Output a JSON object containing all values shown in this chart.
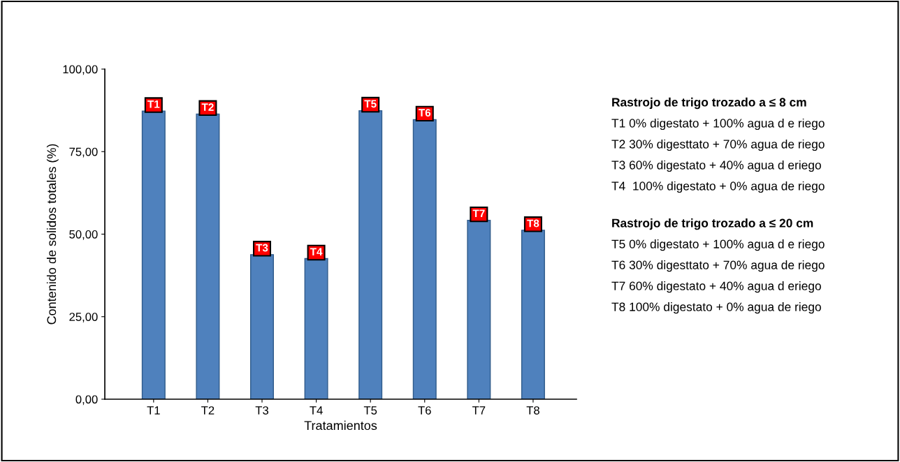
{
  "chart_data": {
    "type": "bar",
    "categories": [
      "T1",
      "T2",
      "T3",
      "T4",
      "T5",
      "T6",
      "T7",
      "T8"
    ],
    "values": [
      87.3,
      86.4,
      43.8,
      42.6,
      87.4,
      84.7,
      54.2,
      51.2
    ],
    "color": "#4f81bd",
    "xlabel": "Tratamientos",
    "ylabel": "Contenido de solidos totales (%)",
    "ylim": [
      0,
      100
    ],
    "yticks": [
      {
        "value": 0,
        "label": "0,00"
      },
      {
        "value": 25,
        "label": "25,00"
      },
      {
        "value": 50,
        "label": "50,00"
      },
      {
        "value": 75,
        "label": "75,00"
      },
      {
        "value": 100,
        "label": "100,00"
      }
    ],
    "grid": false,
    "annotations": [
      {
        "text": "T1",
        "x": "T1",
        "y": 87.3
      },
      {
        "text": "T2",
        "x": "T2",
        "y": 86.4
      },
      {
        "text": "T3",
        "x": "T3",
        "y": 43.8
      },
      {
        "text": "T4",
        "x": "T4",
        "y": 42.6
      },
      {
        "text": "T5",
        "x": "T5",
        "y": 87.4
      },
      {
        "text": "T6",
        "x": "T6",
        "y": 84.7
      },
      {
        "text": "T7",
        "x": "T7",
        "y": 54.2
      },
      {
        "text": "T8",
        "x": "T8",
        "y": 51.2
      },
      "Rastrojo de trigo trozado a ≤ 8 cm",
      "T1 0% digestato + 100% agua d e riego",
      "T2 30% digesttato + 70% agua de riego",
      "T3 60% digestato + 40% agua d eriego",
      "T4  100% digestato + 0% agua de riego",
      "Rastrojo de trigo trozado a ≤ 20 cm",
      "T5 0% digestato + 100% agua d e riego",
      "T6 30% digesttato + 70% agua de riego",
      "T7 60% digestato + 40% agua d eriego",
      "T8 100% digestato + 0% agua de riego"
    ]
  }
}
